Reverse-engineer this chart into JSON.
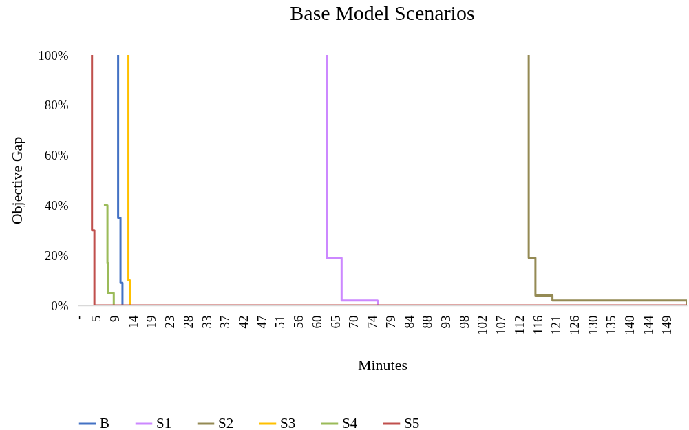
{
  "chart_data": {
    "type": "step",
    "title": "Base Model Scenarios",
    "xlabel": "Minutes",
    "ylabel": "Objective Gap",
    "xlim": [
      0,
      154
    ],
    "ylim": [
      0,
      100
    ],
    "xticks": [
      {
        "value": 0,
        "label": "-"
      },
      {
        "value": 4.65,
        "label": "5"
      },
      {
        "value": 9.3,
        "label": "9"
      },
      {
        "value": 13.95,
        "label": "14"
      },
      {
        "value": 18.6,
        "label": "19"
      },
      {
        "value": 23.25,
        "label": "23"
      },
      {
        "value": 27.9,
        "label": "28"
      },
      {
        "value": 32.55,
        "label": "33"
      },
      {
        "value": 37.2,
        "label": "37"
      },
      {
        "value": 41.85,
        "label": "42"
      },
      {
        "value": 46.5,
        "label": "47"
      },
      {
        "value": 51.15,
        "label": "51"
      },
      {
        "value": 55.8,
        "label": "56"
      },
      {
        "value": 60.45,
        "label": "60"
      },
      {
        "value": 65.1,
        "label": "65"
      },
      {
        "value": 69.75,
        "label": "70"
      },
      {
        "value": 74.4,
        "label": "74"
      },
      {
        "value": 79.05,
        "label": "79"
      },
      {
        "value": 83.7,
        "label": "84"
      },
      {
        "value": 88.35,
        "label": "88"
      },
      {
        "value": 93,
        "label": "93"
      },
      {
        "value": 97.65,
        "label": "98"
      },
      {
        "value": 102.3,
        "label": "102"
      },
      {
        "value": 106.95,
        "label": "107"
      },
      {
        "value": 111.6,
        "label": "112"
      },
      {
        "value": 116.25,
        "label": "116"
      },
      {
        "value": 120.9,
        "label": "121"
      },
      {
        "value": 125.55,
        "label": "126"
      },
      {
        "value": 130.2,
        "label": "130"
      },
      {
        "value": 134.85,
        "label": "135"
      },
      {
        "value": 139.5,
        "label": "140"
      },
      {
        "value": 144.15,
        "label": "144"
      },
      {
        "value": 148.8,
        "label": "149"
      }
    ],
    "yticks": [
      {
        "value": 0,
        "label": "0%"
      },
      {
        "value": 20,
        "label": "20%"
      },
      {
        "value": 40,
        "label": "40%"
      },
      {
        "value": 60,
        "label": "60%"
      },
      {
        "value": 80,
        "label": "80%"
      },
      {
        "value": 100,
        "label": "100%"
      }
    ],
    "grid": false,
    "legend": "bottom",
    "series": [
      {
        "name": "B",
        "color": "#4472c4",
        "x": [
          10.1,
          10.2,
          10.8,
          11.3
        ],
        "values": [
          100,
          35,
          9,
          0
        ]
      },
      {
        "name": "S1",
        "color": "#cc88ff",
        "x": [
          62.9,
          63,
          66.7,
          75.8
        ],
        "values": [
          100,
          19,
          2,
          0
        ]
      },
      {
        "name": "S2",
        "color": "#948a54",
        "x": [
          113.9,
          114,
          115.7,
          120,
          154
        ],
        "values": [
          100,
          19,
          4,
          2,
          0
        ]
      },
      {
        "name": "S3",
        "color": "#ffc000",
        "x": [
          12.7,
          12.8,
          13.2
        ],
        "values": [
          100,
          10,
          0
        ]
      },
      {
        "name": "S4",
        "color": "#9bbb59",
        "x": [
          6.6,
          7.5,
          7.6,
          9.1
        ],
        "values": [
          40,
          17,
          5,
          0
        ]
      },
      {
        "name": "S5",
        "color": "#c0504d",
        "x": [
          3.5,
          3.6,
          4.2,
          154
        ],
        "values": [
          100,
          30,
          0,
          0
        ]
      }
    ]
  }
}
